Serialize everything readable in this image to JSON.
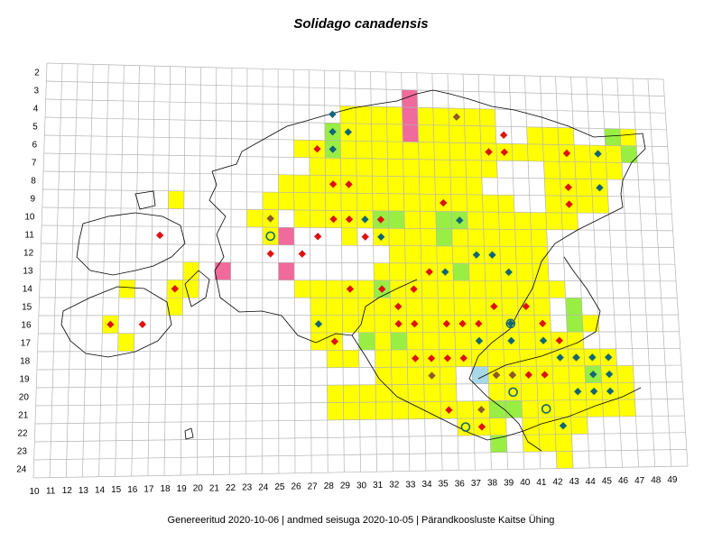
{
  "title": "Solidago canadensis",
  "footer": "Genereeritud 2020-10-06  |  andmed seisuga 2020-10-05  |  Pärandkoosluste Kaitse Ühing",
  "row_labels": [
    "2",
    "3",
    "4",
    "5",
    "6",
    "7",
    "8",
    "9",
    "10",
    "11",
    "12",
    "13",
    "14",
    "15",
    "16",
    "17",
    "18",
    "19",
    "20",
    "21",
    "22",
    "23",
    "24"
  ],
  "column_labels": [
    "10",
    "11",
    "12",
    "13",
    "14",
    "15",
    "16",
    "17",
    "18",
    "19",
    "20",
    "21",
    "22",
    "23",
    "24",
    "25",
    "26",
    "27",
    "28",
    "29",
    "30",
    "31",
    "32",
    "33",
    "34",
    "35",
    "36",
    "37",
    "38",
    "39",
    "40",
    "41",
    "42",
    "43",
    "44",
    "45",
    "46",
    "47",
    "48",
    "49"
  ],
  "colors": {
    "cell_yellow": "#ffff00",
    "cell_green": "#99ee44",
    "cell_pink": "#f06a9b",
    "cell_blue": "#a8d8e8",
    "marker_red": "#dd1111",
    "marker_teal": "#116677",
    "marker_brown": "#8b5a2b",
    "grid": "#b4b4b4",
    "coast": "#000000"
  }
}
